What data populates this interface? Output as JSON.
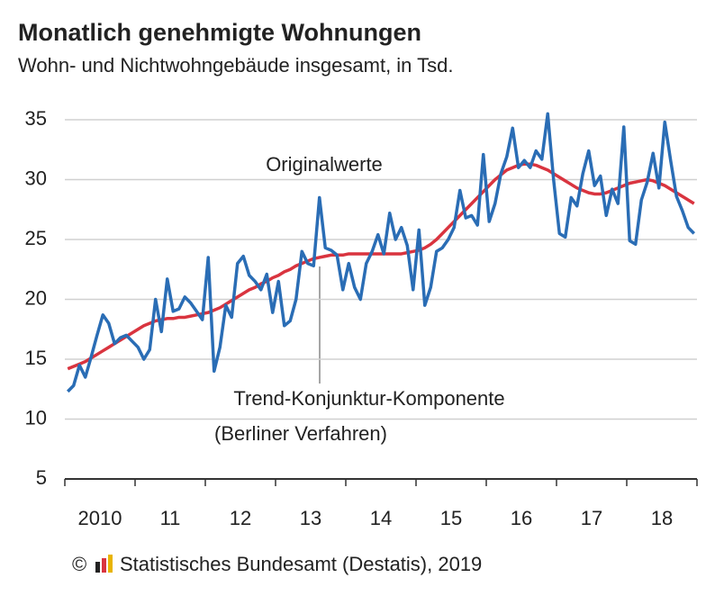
{
  "chart_data": {
    "type": "line",
    "title": "Monatlich genehmigte Wohnungen",
    "subtitle": "Wohn- und Nichtwohngebäude insgesamt, in Tsd.",
    "categories": [
      null,
      null,
      null,
      null,
      null,
      null,
      "2010",
      null,
      null,
      null,
      null,
      null,
      null,
      null,
      null,
      null,
      null,
      null,
      "11",
      null,
      null,
      null,
      null,
      null,
      null,
      null,
      null,
      null,
      null,
      null,
      "12",
      null,
      null,
      null,
      null,
      null,
      null,
      null,
      null,
      null,
      null,
      null,
      "13",
      null,
      null,
      null,
      null,
      null,
      null,
      null,
      null,
      null,
      null,
      null,
      "14",
      null,
      null,
      null,
      null,
      null,
      null,
      null,
      null,
      null,
      null,
      null,
      "15",
      null,
      null,
      null,
      null,
      null,
      null,
      null,
      null,
      null,
      null,
      null,
      "16",
      null,
      null,
      null,
      null,
      null,
      null,
      null,
      null,
      null,
      null,
      null,
      "17",
      null,
      null,
      null,
      null,
      null,
      null,
      null,
      null,
      null,
      null,
      null,
      "18",
      null,
      null,
      null,
      null,
      null
    ],
    "series": [
      {
        "name": "Originalwerte",
        "color": "#2a6db5",
        "values": [
          12.3,
          12.8,
          14.5,
          13.5,
          15.2,
          17,
          18.7,
          18,
          16.3,
          16.8,
          17,
          16.5,
          16,
          15,
          15.8,
          20,
          17.3,
          21.7,
          19,
          19.2,
          20.2,
          19.7,
          19,
          18.3,
          23.5,
          14,
          16,
          19.5,
          18.5,
          23,
          23.6,
          22,
          21.5,
          20.8,
          22.1,
          18.9,
          21.5,
          17.8,
          18.2,
          20,
          24,
          23,
          22.8,
          28.5,
          24.3,
          24.1,
          23.7,
          20.8,
          23,
          21,
          20,
          23,
          24,
          25.4,
          23.8,
          27.2,
          25,
          26,
          24.5,
          20.8,
          25.8,
          19.5,
          21,
          24,
          24.3,
          25,
          26,
          29.1,
          26.8,
          27,
          26.2,
          32.1,
          26.5,
          28,
          30.5,
          31.9,
          34.3,
          31,
          31.6,
          31,
          32.4,
          31.7,
          35.5,
          30,
          25.5,
          25.2,
          28.5,
          27.8,
          30.5,
          32.4,
          29.5,
          30.3,
          27,
          29.2,
          28,
          34.4,
          24.9,
          24.6,
          28.3,
          29.8,
          32.2,
          29.3,
          34.8,
          31.6,
          28.6,
          27.4,
          26,
          25.5
        ]
      },
      {
        "name": "Trend-Konjunktur-Komponente",
        "color": "#d9343f",
        "values": [
          14.2,
          14.4,
          14.6,
          14.8,
          15.1,
          15.4,
          15.7,
          16.0,
          16.3,
          16.6,
          16.9,
          17.2,
          17.5,
          17.8,
          18.0,
          18.2,
          18.3,
          18.4,
          18.4,
          18.5,
          18.5,
          18.6,
          18.7,
          18.8,
          18.9,
          19.1,
          19.3,
          19.6,
          19.9,
          20.2,
          20.5,
          20.8,
          21.0,
          21.3,
          21.5,
          21.8,
          22.0,
          22.3,
          22.5,
          22.8,
          23.0,
          23.2,
          23.4,
          23.5,
          23.6,
          23.7,
          23.7,
          23.7,
          23.8,
          23.8,
          23.8,
          23.8,
          23.8,
          23.8,
          23.8,
          23.8,
          23.8,
          23.8,
          23.9,
          24.0,
          24.1,
          24.3,
          24.6,
          25.0,
          25.5,
          26.0,
          26.5,
          27.0,
          27.5,
          28.0,
          28.5,
          29.0,
          29.5,
          30.0,
          30.4,
          30.8,
          31.0,
          31.2,
          31.3,
          31.3,
          31.2,
          31.0,
          30.8,
          30.5,
          30.2,
          29.9,
          29.6,
          29.3,
          29.1,
          28.9,
          28.8,
          28.8,
          28.9,
          29.1,
          29.3,
          29.5,
          29.7,
          29.8,
          29.9,
          30.0,
          29.9,
          29.7,
          29.5,
          29.2,
          28.9,
          28.6,
          28.3,
          28.0
        ]
      }
    ],
    "annotations": [
      "Originalwerte",
      "Trend-Konjunktur-Komponente",
      "(Berliner Verfahren)"
    ],
    "source": "Statistisches Bundesamt (Destatis), 2019",
    "copyright": "©",
    "ylim": [
      5,
      36
    ],
    "yticks": [
      5,
      10,
      15,
      20,
      25,
      30,
      35
    ],
    "grid": true
  }
}
